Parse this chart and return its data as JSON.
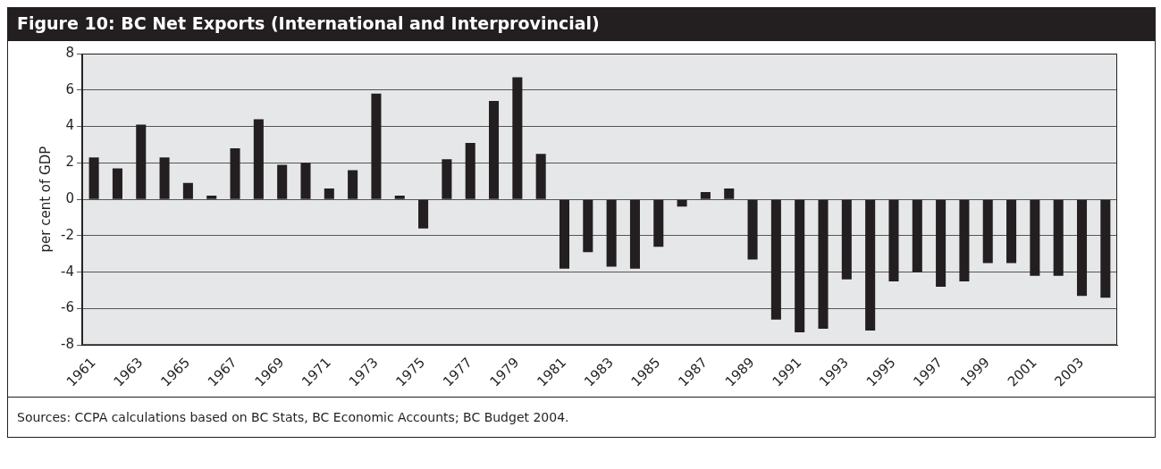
{
  "chart_data": {
    "type": "bar",
    "title": "Figure 10: BC Net Exports (International and Interprovincial)",
    "ylabel": "per cent of GDP",
    "categories": [
      "1961",
      null,
      "1963",
      null,
      "1965",
      null,
      "1967",
      null,
      "1969",
      null,
      "1971",
      null,
      "1973",
      null,
      "1975",
      null,
      "1977",
      null,
      "1979",
      null,
      "1981",
      null,
      "1983",
      null,
      "1985",
      null,
      "1987",
      null,
      "1989",
      null,
      "1991",
      null,
      "1993",
      null,
      "1995",
      null,
      "1997",
      null,
      "1999",
      null,
      "2001",
      null,
      "2003",
      null
    ],
    "values": [
      2.3,
      1.7,
      4.1,
      2.3,
      0.9,
      0.2,
      2.8,
      4.4,
      1.9,
      2.0,
      0.6,
      1.6,
      5.8,
      0.2,
      -1.6,
      2.2,
      3.1,
      5.4,
      6.7,
      2.5,
      -3.8,
      -2.9,
      -3.7,
      -3.8,
      -2.6,
      -0.4,
      0.4,
      0.6,
      -3.3,
      -6.6,
      -7.3,
      -7.1,
      -4.4,
      -7.2,
      -4.5,
      -4.0,
      -4.8,
      -4.5,
      -3.5,
      -3.5,
      -4.2,
      -4.2,
      -5.3,
      -5.4
    ],
    "color": "#231f20",
    "ylim": [
      -8,
      8
    ],
    "yticks": [
      -8,
      -6,
      -4,
      -2,
      0,
      2,
      4,
      6,
      8
    ],
    "grid": "y",
    "legend": false,
    "annotations": [
      "Sources: CCPA calculations based on BC Stats, BC Economic Accounts; BC Budget 2004."
    ]
  }
}
